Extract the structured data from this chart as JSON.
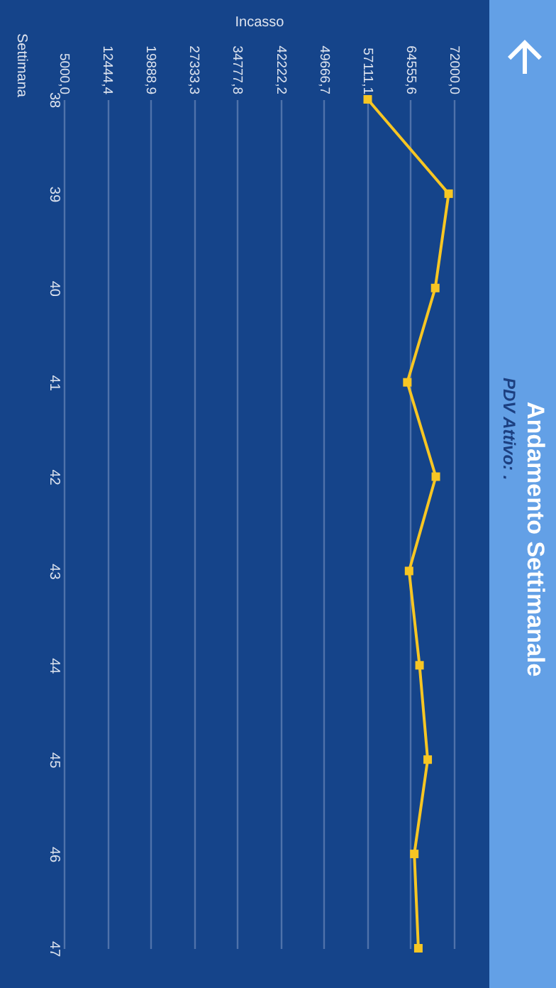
{
  "chart_data": {
    "type": "line",
    "orientation": "horizontal",
    "title": "Andamento Settimanale",
    "subtitle": "PDV Attivo: .",
    "xlabel": "Incasso",
    "ylabel": "Settimana",
    "categories": [
      "38",
      "39",
      "40",
      "41",
      "42",
      "43",
      "44",
      "45",
      "46",
      "47"
    ],
    "series": [
      {
        "color": "#f7c623",
        "values": [
          57200,
          71100,
          68800,
          64000,
          68900,
          64300,
          66100,
          67500,
          65200,
          65900
        ]
      }
    ],
    "xlim": [
      5000,
      72000
    ],
    "xticks": [
      {
        "value": 5000,
        "label": "5000,0"
      },
      {
        "value": 12444.4,
        "label": "12444,4"
      },
      {
        "value": 19888.9,
        "label": "19888,9"
      },
      {
        "value": 27333.3,
        "label": "27333,3"
      },
      {
        "value": 34777.8,
        "label": "34777,8"
      },
      {
        "value": 42222.2,
        "label": "42222,2"
      },
      {
        "value": 49666.7,
        "label": "49666,7"
      },
      {
        "value": 57111.1,
        "label": "57111,1"
      },
      {
        "value": 64555.6,
        "label": "64555,6"
      },
      {
        "value": 72000,
        "label": "72000,0"
      }
    ],
    "grid": "x",
    "marker": "square",
    "line_style": "solid"
  }
}
